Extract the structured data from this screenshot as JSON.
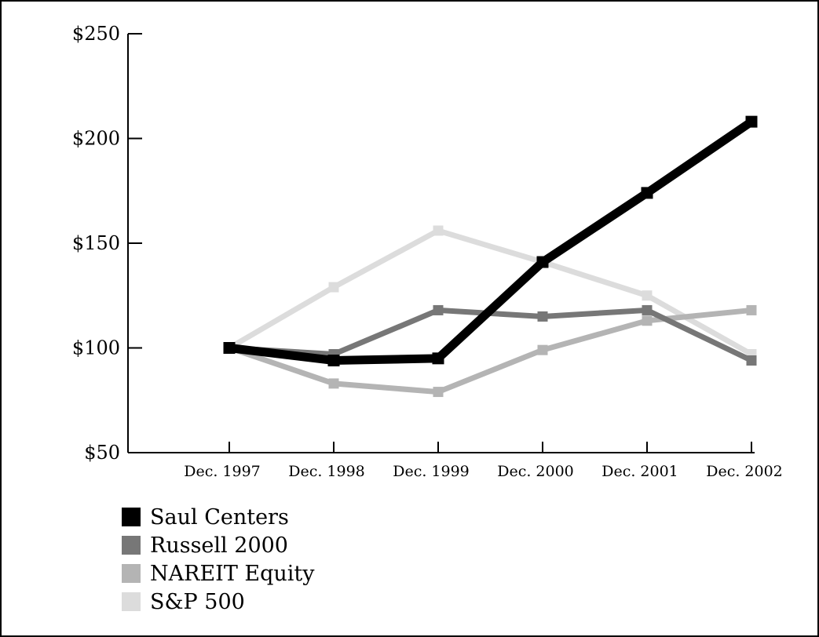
{
  "chart_data": {
    "type": "line",
    "categories": [
      "Dec. 1997",
      "Dec. 1998",
      "Dec. 1999",
      "Dec. 2000",
      "Dec. 2001",
      "Dec. 2002"
    ],
    "ylim": [
      50,
      250
    ],
    "yticks": [
      50,
      100,
      150,
      200,
      250
    ],
    "ytick_labels": [
      "$50",
      "$100",
      "$150",
      "$200",
      "$250"
    ],
    "grid": false,
    "legend_position": "bottom-left",
    "series": [
      {
        "name": "S&P 500",
        "color": "#dcdcdc",
        "values": [
          100,
          129,
          156,
          141,
          125,
          97
        ]
      },
      {
        "name": "NAREIT Equity",
        "color": "#b4b4b4",
        "values": [
          100,
          83,
          79,
          99,
          113,
          118
        ]
      },
      {
        "name": "Russell 2000",
        "color": "#777777",
        "values": [
          100,
          97,
          118,
          115,
          118,
          94
        ]
      },
      {
        "name": "Saul Centers",
        "color": "#000000",
        "values": [
          100,
          94,
          95,
          141,
          174,
          208
        ]
      }
    ],
    "legend_order": [
      "Saul Centers",
      "Russell 2000",
      "NAREIT Equity",
      "S&P 500"
    ]
  }
}
